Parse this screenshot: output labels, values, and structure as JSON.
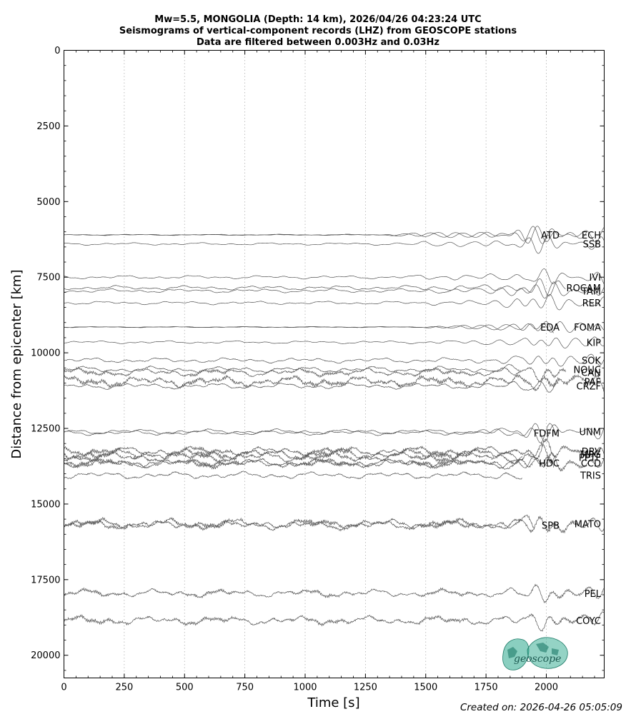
{
  "chart_data": {
    "type": "line",
    "title_lines": [
      "Mw=5.5, MONGOLIA (Depth: 14 km), 2026/04/26 04:23:24 UTC",
      "Seismograms of vertical-component records (LHZ) from GEOSCOPE stations",
      "Data are filtered between 0.003Hz and 0.03Hz"
    ],
    "xlabel": "Time [s]",
    "ylabel": "Distance from epicenter [km]",
    "xlim": [
      0,
      2240
    ],
    "ylim": [
      20750,
      0
    ],
    "xticks": [
      0,
      250,
      500,
      750,
      1000,
      1250,
      1500,
      1750,
      2000
    ],
    "xtick_labels": [
      "0",
      "250",
      "500",
      "750",
      "1000",
      "1250",
      "1500",
      "1750",
      "2000"
    ],
    "yticks": [
      0,
      2500,
      5000,
      7500,
      10000,
      12500,
      15000,
      17500,
      20000
    ],
    "ytick_labels": [
      "0",
      "2500",
      "5000",
      "7500",
      "10000",
      "12500",
      "15000",
      "17500",
      "20000"
    ],
    "vertical_grid": "dotted",
    "trace_color": "#555555",
    "stations": [
      {
        "name": "ECH",
        "distance": 6100,
        "noise": 0.15,
        "onset": 1280,
        "surface": 1740,
        "dur": 2170
      },
      {
        "name": "ATD",
        "distance": 6100,
        "noise": 0.1,
        "onset": 1300,
        "surface": 1750,
        "dur": 2240
      },
      {
        "name": "SSB",
        "distance": 6400,
        "noise": 0.3,
        "onset": 1330,
        "surface": 1760,
        "dur": 2240
      },
      {
        "name": "IVI",
        "distance": 7500,
        "noise": 0.4,
        "onset": 1380,
        "surface": 1900,
        "dur": 2240
      },
      {
        "name": "ROCAM",
        "distance": 7850,
        "noise": 0.5,
        "onset": 1400,
        "surface": 1800,
        "dur": 2080
      },
      {
        "name": "TAM",
        "distance": 7950,
        "noise": 0.45,
        "onset": 1420,
        "surface": 1760,
        "dur": 2240
      },
      {
        "name": "RER",
        "distance": 8350,
        "noise": 0.4,
        "onset": 1440,
        "surface": 1780,
        "dur": 2240
      },
      {
        "name": "FOMA",
        "distance": 9150,
        "noise": 0.12,
        "onset": 1460,
        "surface": 1840,
        "dur": 2030
      },
      {
        "name": "EDA",
        "distance": 9150,
        "noise": 0.12,
        "onset": 1470,
        "surface": 1880,
        "dur": 2240
      },
      {
        "name": "KIP",
        "distance": 9650,
        "noise": 0.35,
        "onset": 1480,
        "surface": 1900,
        "dur": 2240
      },
      {
        "name": "SOK",
        "distance": 10250,
        "noise": 0.6,
        "onset": 1500,
        "surface": 1900,
        "dur": 2240
      },
      {
        "name": "NOUC",
        "distance": 10550,
        "noise": 0.7,
        "onset": 1510,
        "surface": 1900,
        "dur": 1890
      },
      {
        "name": "CAN",
        "distance": 10650,
        "noise": 0.9,
        "onset": 1520,
        "surface": 1900,
        "dur": 2080
      },
      {
        "name": "PAF",
        "distance": 10950,
        "noise": 1.2,
        "onset": 1530,
        "surface": 1930,
        "dur": 2240
      },
      {
        "name": "CRZF",
        "distance": 11100,
        "noise": 0.7,
        "onset": 1540,
        "surface": 1940,
        "dur": 2050
      },
      {
        "name": "UNM",
        "distance": 12600,
        "noise": 0.55,
        "onset": 1560,
        "surface": 1750,
        "dur": 2240
      },
      {
        "name": "FDFM",
        "distance": 12650,
        "noise": 0.55,
        "onset": 1560,
        "surface": 1760,
        "dur": 2050
      },
      {
        "name": "DRV",
        "distance": 13250,
        "noise": 1.0,
        "onset": 1580,
        "surface": 1800,
        "dur": 2240
      },
      {
        "name": "MPG",
        "distance": 13350,
        "noise": 1.2,
        "onset": 1580,
        "surface": 1800,
        "dur": 2030
      },
      {
        "name": "PPTF",
        "distance": 13450,
        "noise": 1.1,
        "onset": 1590,
        "surface": 1810,
        "dur": 1900
      },
      {
        "name": "CCD",
        "distance": 13650,
        "noise": 1.0,
        "onset": 1590,
        "surface": 1820,
        "dur": 2240
      },
      {
        "name": "HDC",
        "distance": 13650,
        "noise": 0.9,
        "onset": 1600,
        "surface": 1830,
        "dur": 2030
      },
      {
        "name": "TRIS",
        "distance": 14050,
        "noise": 0.8,
        "onset": 1600,
        "surface": 1840,
        "dur": 1900
      },
      {
        "name": "MATO",
        "distance": 15650,
        "noise": 1.1,
        "onset": 1620,
        "surface": 1860,
        "dur": 1950
      },
      {
        "name": "SPB",
        "distance": 15700,
        "noise": 1.0,
        "onset": 1620,
        "surface": 1860,
        "dur": 2240
      },
      {
        "name": "PEL",
        "distance": 17950,
        "noise": 0.9,
        "onset": 1650,
        "surface": 1880,
        "dur": 2240
      },
      {
        "name": "COYC",
        "distance": 18850,
        "noise": 1.0,
        "onset": 1660,
        "surface": 1890,
        "dur": 2240
      }
    ]
  },
  "footer": {
    "created": "Created on: 2026-04-26 05:05:09"
  },
  "logo": {
    "text": "geoscope",
    "color": "#2aa78c"
  }
}
